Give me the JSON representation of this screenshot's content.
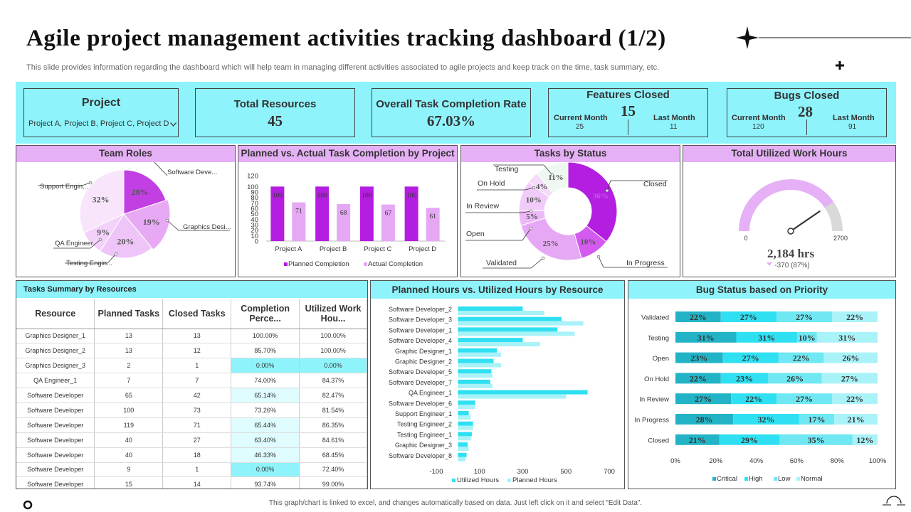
{
  "title": "Agile project management activities tracking dashboard (1/2)",
  "subtitle": "This slide provides information regarding the dashboard which will help team in managing different activities associated to agile projects and keep track on the time, task summary, etc.",
  "kpis": {
    "project": {
      "label": "Project",
      "select_value": "Project A, Project B, Project C, Project D"
    },
    "resources": {
      "label": "Total Resources",
      "value": "45"
    },
    "completion": {
      "label": "Overall Task Completion Rate",
      "value": "67.03%"
    },
    "features": {
      "label": "Features Closed",
      "value": "15",
      "current_label": "Current Month",
      "current_value": "25",
      "last_label": "Last Month",
      "last_value": "11"
    },
    "bugs": {
      "label": "Bugs Closed",
      "value": "28",
      "current_label": "Current Month",
      "current_value": "120",
      "last_label": "Last Month",
      "last_value": "91"
    }
  },
  "colors": {
    "cyan": "#8ef3fb",
    "pink": "#e6b0f6",
    "purple_dark": "#b41ee0",
    "purple_light": "#e6a8f5",
    "gauge": "#e6b0f6",
    "critical": "#23b3c6",
    "high": "#2fe0f2",
    "low": "#6fe8f4",
    "normal": "#a8f2f8"
  },
  "panels": {
    "team_roles": "Team Roles",
    "planned_vs_actual": "Planned vs. Actual Task Completion by Project",
    "tasks_by_status": "Tasks by Status",
    "work_hours": "Total Utilized Work Hours",
    "tasks_summary": "Tasks Summary by Resources",
    "planned_hours": "Planned Hours vs. Utilized Hours  by Resource",
    "bug_status": "Bug Status based on Priority"
  },
  "footer": "This graph/chart is linked to excel, and changes automatically based on data. Just left click on it and select “Edit Data”.",
  "table": {
    "headers": [
      "Resource",
      "Planned Tasks",
      "Closed Tasks",
      "Completion Perce...",
      "Utilized Work Hou..."
    ],
    "rows": [
      [
        "Graphics Designer_1",
        "13",
        "13",
        "100.00%",
        "100.00%"
      ],
      [
        "Graphics Designer_2",
        "13",
        "12",
        "85.70%",
        "100.00%"
      ],
      [
        "Graphics Designer_3",
        "2",
        "1",
        "0.00%",
        "0.00%"
      ],
      [
        "QA Engineer_1",
        "7",
        "7",
        "74.00%",
        "84.37%"
      ],
      [
        "Software Developer",
        "65",
        "42",
        "65.14%",
        "82.47%"
      ],
      [
        "Software Developer",
        "100",
        "73",
        "73.26%",
        "81.54%"
      ],
      [
        "Software Developer",
        "119",
        "71",
        "65.44%",
        "86.35%"
      ],
      [
        "Software Developer",
        "40",
        "27",
        "63.40%",
        "84.61%"
      ],
      [
        "Software Developer",
        "40",
        "18",
        "46.33%",
        "68.45%"
      ],
      [
        "Software Developer",
        "9",
        "1",
        "0.00%",
        "72.40%"
      ],
      [
        "Software Developer",
        "15",
        "14",
        "93.74%",
        "99.00%"
      ]
    ]
  },
  "chart_data": [
    {
      "type": "pie",
      "title": "Team Roles",
      "categories": [
        "Software Deve...",
        "Graphics Desi...",
        "Testing Engin...",
        "QA Engineer",
        "Support Engin..."
      ],
      "values": [
        20,
        19,
        20,
        9,
        32
      ],
      "labels": [
        "20%",
        "19%",
        "20%",
        "9%",
        "32%"
      ]
    },
    {
      "type": "bar",
      "title": "Planned vs. Actual Task Completion by Project",
      "categories": [
        "Project A",
        "Project B",
        "Project C",
        "Project D"
      ],
      "series": [
        {
          "name": "Planned Completion",
          "values": [
            100,
            100,
            100,
            100
          ]
        },
        {
          "name": "Actual Completion",
          "values": [
            71,
            68,
            67,
            61
          ]
        }
      ],
      "yticks": [
        "0",
        "10",
        "20",
        "30",
        "40",
        "50",
        "60",
        "70",
        "80",
        "90",
        "100",
        "120"
      ],
      "ylim": [
        0,
        120
      ]
    },
    {
      "type": "pie",
      "title": "Tasks by Status",
      "categories": [
        "Closed",
        "In Progress",
        "Validated",
        "Open",
        "In Review",
        "On Hold",
        "Testing"
      ],
      "values": [
        36,
        10,
        25,
        5,
        10,
        4,
        11
      ],
      "labels": [
        "36%",
        "10%",
        "25%",
        "5%",
        "10%",
        "4%",
        "11%"
      ]
    },
    {
      "type": "gauge",
      "title": "Total Utilized Work Hours",
      "value": 2184,
      "min": 0,
      "max": 2700,
      "min_label": "0",
      "max_label": "2700",
      "value_label": "2,184 hrs",
      "delta_label": "-370 (87%)"
    },
    {
      "type": "bar",
      "title": "Planned Hours vs. Utilized Hours  by Resource",
      "categories": [
        "Software Developer_2",
        "Software Developer_3",
        "Software Developer_1",
        "Software Developer_4",
        "Graphic Designer_1",
        "Graphic Designer_2",
        "Software Developer_5",
        "Software Developer_7",
        "QA Engineer_1",
        "Software Developer_6",
        "Support Engineer_1",
        "Testing Engineer_2",
        "Testing Engineer_1",
        "Graphic Designer_3",
        "Software Developer_8"
      ],
      "series": [
        {
          "name": "Utilized Hours",
          "values": [
            300,
            480,
            460,
            300,
            180,
            165,
            155,
            150,
            600,
            80,
            50,
            70,
            65,
            45,
            40
          ]
        },
        {
          "name": "Planned Hours",
          "values": [
            400,
            580,
            540,
            380,
            200,
            200,
            160,
            160,
            500,
            80,
            60,
            70,
            60,
            50,
            35
          ]
        }
      ],
      "xticks": [
        "-100",
        "100",
        "300",
        "500",
        "700"
      ],
      "xlim": [
        -100,
        700
      ]
    },
    {
      "type": "bar",
      "title": "Bug Status based on Priority",
      "categories": [
        "Validated",
        "Testing",
        "Open",
        "On Hold",
        "In Review",
        "In Progress",
        "Closed"
      ],
      "series": [
        {
          "name": "Critical",
          "values": [
            22,
            31,
            23,
            22,
            27,
            28,
            21
          ]
        },
        {
          "name": "High",
          "values": [
            27,
            31,
            27,
            23,
            22,
            32,
            29
          ]
        },
        {
          "name": "Low",
          "values": [
            27,
            10,
            22,
            26,
            27,
            17,
            35
          ]
        },
        {
          "name": "Normal",
          "values": [
            22,
            31,
            26,
            27,
            22,
            21,
            12
          ]
        }
      ],
      "xticks": [
        "0%",
        "20%",
        "40%",
        "60%",
        "80%",
        "100%"
      ]
    }
  ]
}
